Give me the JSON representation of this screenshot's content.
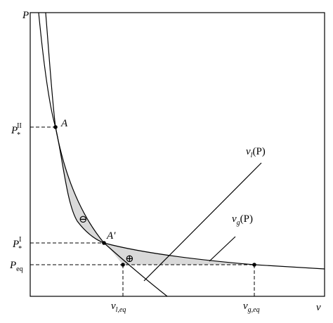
{
  "axes": {
    "y": "P",
    "x": "v"
  },
  "points": {
    "A": "A",
    "A_prime": "A′"
  },
  "regions": {
    "minus": "⊖",
    "plus": "⊕"
  },
  "curves": {
    "liquid": {
      "base": "v",
      "sub": "l",
      "arg": "(P)"
    },
    "gas": {
      "base": "v",
      "sub": "g",
      "arg": "(P)"
    }
  },
  "pressures": [
    {
      "base": "P",
      "sub": "*",
      "sup": "II"
    },
    {
      "base": "P",
      "sub": "*",
      "sup": "I"
    },
    {
      "base": "P",
      "sub": "eq"
    }
  ],
  "volumes": [
    {
      "base": "v",
      "sub": "l,eq"
    },
    {
      "base": "v",
      "sub": "g,eq"
    }
  ]
}
